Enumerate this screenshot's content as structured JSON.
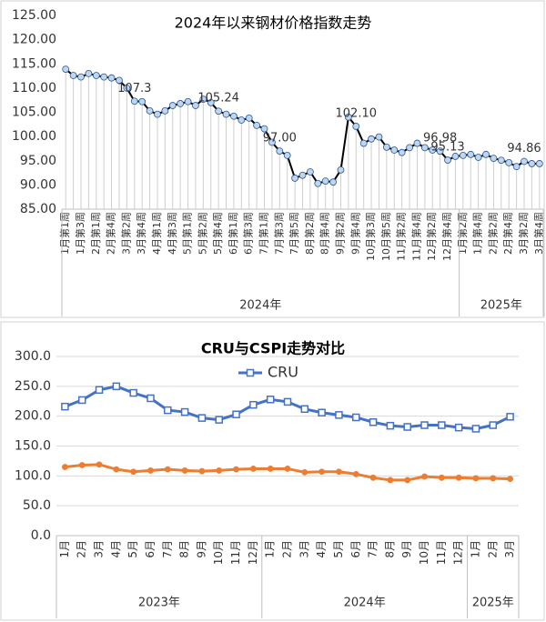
{
  "chart_data": [
    {
      "type": "line",
      "title": "2024年以来钢材价格指数走势",
      "categories": [
        "1月第1周",
        null,
        "1月第3周",
        null,
        "2月第1周",
        null,
        "2月第4周",
        null,
        "3月第2周",
        null,
        "3月第4周",
        null,
        "4月第1周",
        null,
        "4月第3周",
        null,
        "5月第1周",
        null,
        "5月第2周",
        null,
        "5月第4周",
        null,
        "6月第1周",
        null,
        "6月第3周",
        null,
        "7月第1周",
        null,
        "7月第3周",
        null,
        "7月第5周",
        null,
        "8月第2周",
        null,
        "8月第4周",
        null,
        "9月第2周",
        null,
        "9月第4周",
        null,
        "10月第3周",
        null,
        "10月第5周",
        null,
        "11月第2周",
        null,
        "11月第4周",
        null,
        "12月第2周",
        null,
        "12月第4周",
        null,
        "1月第2周",
        null,
        "1月第4周",
        null,
        "2月第2周",
        null,
        "2月第4周",
        null,
        "3月第2周",
        null,
        "3月第4周"
      ],
      "groups": [
        {
          "label": "2024年",
          "count": 52
        },
        {
          "label": "2025年",
          "count": 11
        }
      ],
      "series": [
        {
          "color": "#000000",
          "marker_color": "#bdd7ee",
          "drop_line_color": "#cfcfcf",
          "values": [
            113.9,
            112.6,
            112.3,
            113.0,
            112.6,
            112.3,
            112.1,
            111.6,
            110.0,
            107.3,
            107.2,
            105.3,
            104.6,
            105.3,
            106.4,
            106.8,
            107.2,
            106.4,
            107.7,
            107.0,
            105.24,
            104.6,
            104.2,
            103.4,
            103.8,
            102.3,
            101.6,
            98.8,
            97.0,
            96.1,
            91.4,
            92.0,
            92.7,
            90.3,
            90.8,
            90.6,
            93.1,
            104.0,
            102.1,
            98.6,
            99.5,
            99.9,
            97.8,
            97.2,
            96.7,
            97.7,
            98.6,
            97.7,
            97.2,
            96.98,
            95.13,
            95.9,
            96.1,
            96.3,
            95.7,
            96.3,
            95.5,
            95.1,
            94.6,
            93.8,
            94.86,
            94.4,
            94.4
          ],
          "value_labels": [
            null,
            null,
            null,
            null,
            null,
            null,
            null,
            null,
            null,
            "107.3",
            null,
            null,
            null,
            null,
            null,
            null,
            null,
            null,
            null,
            null,
            "105.24",
            null,
            null,
            null,
            null,
            null,
            null,
            null,
            "97.00",
            null,
            null,
            null,
            null,
            null,
            null,
            null,
            null,
            null,
            "102.10",
            null,
            null,
            null,
            null,
            null,
            null,
            null,
            null,
            null,
            null,
            "96.98",
            "95.13",
            null,
            null,
            null,
            null,
            null,
            null,
            null,
            null,
            null,
            "94.86",
            null,
            null
          ]
        }
      ],
      "ylim": [
        85,
        125
      ],
      "yticks": [
        {
          "value": 85,
          "label": "85.00"
        },
        {
          "value": 90,
          "label": "90.00"
        },
        {
          "value": 95,
          "label": "95.00"
        },
        {
          "value": 100,
          "label": "100.00"
        },
        {
          "value": 105,
          "label": "105.00"
        },
        {
          "value": 110,
          "label": "110.00"
        },
        {
          "value": 115,
          "label": "115.00"
        },
        {
          "value": 120,
          "label": "120.00"
        },
        {
          "value": 125,
          "label": "125.00"
        }
      ],
      "grid": false
    },
    {
      "type": "line",
      "title": "CRU与CSPI走势对比",
      "categories": [
        "1月",
        "2月",
        "3月",
        "4月",
        "5月",
        "6月",
        "7月",
        "8月",
        "9月",
        "10月",
        "11月",
        "12月",
        "1月",
        "2月",
        "3月",
        "4月",
        "5月",
        "6月",
        "7月",
        "8月",
        "9月",
        "10月",
        "11月",
        "12月",
        "1月",
        "2月",
        "3月"
      ],
      "groups": [
        {
          "label": "2023年",
          "count": 12
        },
        {
          "label": "2024年",
          "count": 12
        },
        {
          "label": "2025年",
          "count": 3
        }
      ],
      "series": [
        {
          "name": "CRU",
          "color": "#4472c4",
          "marker": "square",
          "values": [
            216,
            227,
            244,
            250,
            239,
            230,
            210,
            207,
            197,
            194,
            203,
            219,
            228,
            224,
            212,
            206,
            202,
            198,
            190,
            184,
            182,
            185,
            185,
            181,
            179,
            185,
            199
          ]
        },
        {
          "color": "#ed7d31",
          "marker": "circle",
          "values": [
            115,
            118,
            119,
            111,
            107,
            109,
            111,
            109,
            108,
            109,
            111,
            112,
            112,
            112,
            106,
            107,
            107,
            103,
            97,
            93,
            93,
            99,
            97,
            97,
            96,
            96,
            95
          ]
        }
      ],
      "ylim": [
        0,
        300
      ],
      "yticks": [
        {
          "value": 0,
          "label": "0.0"
        },
        {
          "value": 50,
          "label": "50.0"
        },
        {
          "value": 100,
          "label": "100.0"
        },
        {
          "value": 150,
          "label": "150.0"
        },
        {
          "value": 200,
          "label": "200.0"
        },
        {
          "value": 250,
          "label": "250.0"
        },
        {
          "value": 300,
          "label": "300.0"
        }
      ],
      "grid": true,
      "legend": "top"
    }
  ]
}
